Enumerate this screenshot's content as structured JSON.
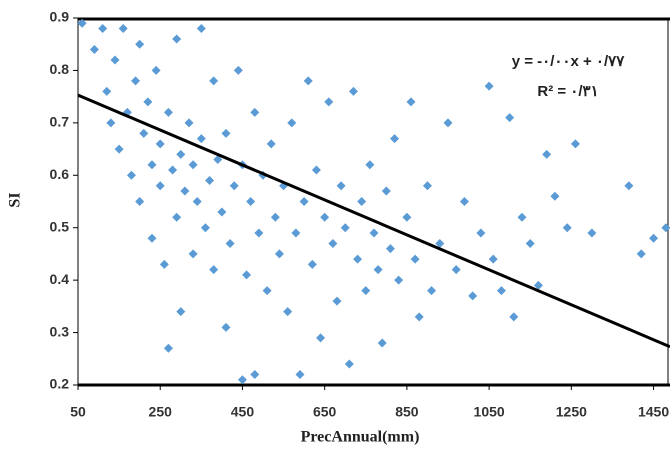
{
  "chart_data": {
    "type": "scatter",
    "x_label": "PrecAnnual(mm)",
    "y_label": "SI",
    "annotations": [
      "y = -۰/۰۰x + ۰/۷۷",
      "R² = ۰/۳۱"
    ],
    "color": "#5b9bd5",
    "xlim": [
      50,
      1490
    ],
    "ylim": [
      0.2,
      0.9
    ],
    "xticks": [
      50,
      250,
      450,
      650,
      850,
      1050,
      1250,
      1450
    ],
    "yticks": [
      0.2,
      0.3,
      0.4,
      0.5,
      0.6,
      0.7,
      0.8,
      0.9
    ],
    "x": [
      60,
      90,
      110,
      120,
      130,
      140,
      150,
      160,
      170,
      180,
      190,
      200,
      200,
      210,
      220,
      230,
      230,
      240,
      250,
      250,
      260,
      270,
      270,
      280,
      290,
      290,
      300,
      300,
      310,
      320,
      330,
      330,
      340,
      350,
      350,
      360,
      370,
      380,
      380,
      390,
      400,
      410,
      410,
      420,
      430,
      440,
      450,
      450,
      460,
      470,
      480,
      480,
      490,
      500,
      510,
      520,
      530,
      540,
      550,
      560,
      570,
      580,
      590,
      600,
      610,
      620,
      630,
      640,
      650,
      660,
      670,
      680,
      690,
      700,
      710,
      720,
      730,
      740,
      750,
      760,
      770,
      780,
      790,
      800,
      810,
      820,
      830,
      850,
      860,
      870,
      880,
      900,
      910,
      930,
      950,
      970,
      990,
      1010,
      1030,
      1050,
      1060,
      1080,
      1100,
      1110,
      1130,
      1150,
      1170,
      1190,
      1210,
      1240,
      1260,
      1300,
      1390,
      1420,
      1450,
      1480
    ],
    "values": [
      0.89,
      0.84,
      0.88,
      0.76,
      0.7,
      0.82,
      0.65,
      0.88,
      0.72,
      0.6,
      0.78,
      0.85,
      0.55,
      0.68,
      0.74,
      0.48,
      0.62,
      0.8,
      0.66,
      0.58,
      0.43,
      0.72,
      0.27,
      0.61,
      0.86,
      0.52,
      0.64,
      0.34,
      0.57,
      0.7,
      0.45,
      0.62,
      0.55,
      0.88,
      0.67,
      0.5,
      0.59,
      0.78,
      0.42,
      0.63,
      0.53,
      0.68,
      0.31,
      0.47,
      0.58,
      0.8,
      0.62,
      0.21,
      0.41,
      0.55,
      0.72,
      0.22,
      0.49,
      0.6,
      0.38,
      0.66,
      0.52,
      0.45,
      0.58,
      0.34,
      0.7,
      0.49,
      0.22,
      0.55,
      0.78,
      0.43,
      0.61,
      0.29,
      0.52,
      0.74,
      0.47,
      0.36,
      0.58,
      0.5,
      0.24,
      0.76,
      0.44,
      0.55,
      0.38,
      0.62,
      0.49,
      0.42,
      0.28,
      0.57,
      0.46,
      0.67,
      0.4,
      0.52,
      0.74,
      0.44,
      0.33,
      0.58,
      0.38,
      0.47,
      0.7,
      0.42,
      0.55,
      0.37,
      0.49,
      0.77,
      0.44,
      0.38,
      0.71,
      0.33,
      0.52,
      0.47,
      0.39,
      0.64,
      0.56,
      0.5,
      0.66,
      0.49,
      0.58,
      0.45,
      0.48,
      0.5
    ],
    "trendline": {
      "x": [
        50,
        1490
      ],
      "values": [
        0.753,
        0.273
      ],
      "color": "#000000"
    }
  }
}
